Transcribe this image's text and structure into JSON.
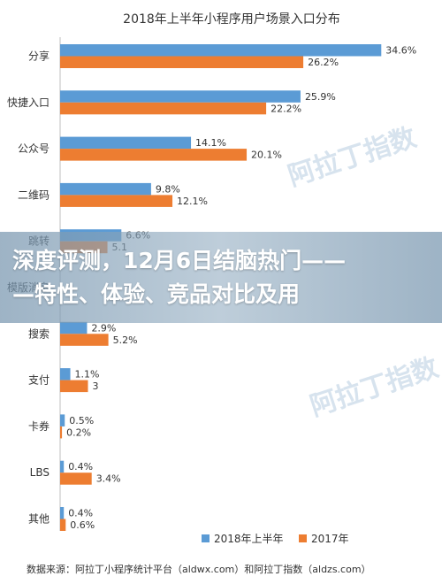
{
  "chart_data": {
    "type": "bar",
    "orientation": "horizontal",
    "title": "2018年上半年小程序用户场景入口分布",
    "categories": [
      "分享",
      "快捷入口",
      "公众号",
      "二维码",
      "跳转",
      "模版消息",
      "搜索",
      "支付",
      "卡券",
      "LBS",
      "其他"
    ],
    "series": [
      {
        "name": "2018年上半年",
        "color": "#5B9BD5",
        "values": [
          34.6,
          25.9,
          14.1,
          9.8,
          6.6,
          null,
          2.9,
          1.1,
          0.5,
          0.4,
          0.4
        ],
        "labels": [
          "34.6%",
          "25.9%",
          "14.1%",
          "9.8%",
          "6.6%",
          "",
          "2.9%",
          "1.1%",
          "0.5%",
          "0.4%",
          "0.4%"
        ]
      },
      {
        "name": "2017年",
        "color": "#ED7D31",
        "values": [
          26.2,
          22.2,
          20.1,
          12.1,
          5.1,
          null,
          5.2,
          3,
          0.2,
          3.4,
          0.6
        ],
        "labels": [
          "26.2%",
          "22.2%",
          "20.1%",
          "12.1%",
          "5.1",
          "",
          "5.2%",
          "3",
          "0.2%",
          "3.4%",
          "0.6%"
        ]
      }
    ],
    "xlim": [
      0,
      36
    ],
    "grid": false,
    "legend": "bottom"
  },
  "overlay": {
    "line1": "深度评测，12月6日结脑热门——",
    "line2": "—特性、体验、竞品对比及用"
  },
  "source": "数据来源：阿拉丁小程序统计平台（aldwx.com）和阿拉丁指数（aldzs.com）"
}
